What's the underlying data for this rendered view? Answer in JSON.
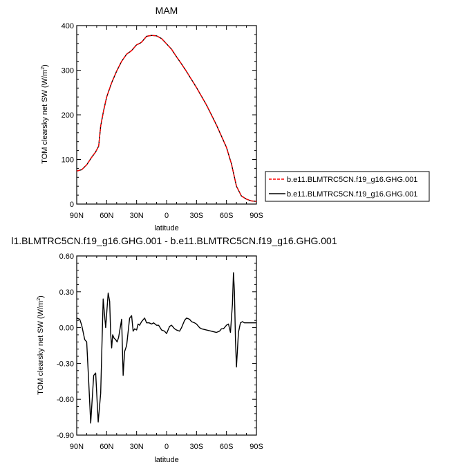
{
  "chart_data": [
    {
      "type": "line",
      "title": "MAM",
      "xlabel": "latitude",
      "ylabel": "TOM clearsky net SW (W/m²)",
      "ylabel_main": "TOM clearsky net SW (W/m",
      "ylabel_sup": "2",
      "ylabel_end": ")",
      "xlim": [
        90,
        -90
      ],
      "ylim": [
        0,
        400
      ],
      "x_ticks": [
        90,
        60,
        30,
        0,
        -30,
        -60,
        -90
      ],
      "x_tick_labels": [
        "90N",
        "60N",
        "30N",
        "0",
        "30S",
        "60S",
        "90S"
      ],
      "y_ticks": [
        0,
        100,
        200,
        300,
        400
      ],
      "y_tick_labels": [
        "0",
        "100",
        "200",
        "300",
        "400"
      ],
      "legend": {
        "placement": "right",
        "entries": [
          {
            "label": "b.e11.BLMTRC5CN.f19_g16.GHG.001",
            "color": "#ff0000",
            "dash": "dashed"
          },
          {
            "label": "b.e11.BLMTRC5CN.f19_g16.GHG.001",
            "color": "#000000",
            "dash": "solid"
          }
        ]
      },
      "series": [
        {
          "name": "b.e11.BLMTRC5CN.f19_g16.GHG.001",
          "color": "#ff0000",
          "dash": "dashed",
          "x": [
            90,
            85,
            80,
            75,
            71,
            68,
            66,
            63,
            60,
            55,
            50,
            45,
            40,
            35,
            30,
            27,
            25,
            20,
            15,
            10,
            5,
            0,
            -5,
            -10,
            -15,
            -20,
            -30,
            -40,
            -50,
            -60,
            -65,
            -70,
            -75,
            -80,
            -85,
            -90
          ],
          "y": [
            74,
            77,
            88,
            105,
            117,
            130,
            175,
            210,
            240,
            272,
            298,
            320,
            336,
            344,
            357,
            360,
            363,
            376,
            378,
            377,
            371,
            359,
            347,
            330,
            314,
            297,
            261,
            222,
            177,
            127,
            90,
            40,
            18,
            11,
            7,
            6
          ]
        },
        {
          "name": "b.e11.BLMTRC5CN.f19_g16.GHG.001",
          "color": "#000000",
          "dash": "solid",
          "x": [
            90,
            85,
            80,
            75,
            71,
            68,
            66,
            63,
            60,
            55,
            50,
            45,
            40,
            35,
            30,
            27,
            25,
            20,
            15,
            10,
            5,
            0,
            -5,
            -10,
            -15,
            -20,
            -30,
            -40,
            -50,
            -60,
            -65,
            -70,
            -75,
            -80,
            -85,
            -90
          ],
          "y": [
            74,
            77,
            88,
            105,
            117,
            130,
            175,
            210,
            240,
            272,
            298,
            320,
            336,
            344,
            357,
            360,
            363,
            376,
            378,
            377,
            371,
            359,
            347,
            330,
            314,
            297,
            261,
            222,
            177,
            127,
            90,
            40,
            18,
            11,
            7,
            6
          ]
        }
      ]
    },
    {
      "type": "line",
      "title": "l1.BLMTRC5CN.f19_g16.GHG.001 - b.e11.BLMTRC5CN.f19_g16.GHG.001",
      "xlabel": "latitude",
      "ylabel": "TOM clearsky net SW (W/m²)",
      "ylabel_main": "TOM clearsky net SW (W/m",
      "ylabel_sup": "2",
      "ylabel_end": ")",
      "xlim": [
        90,
        -90
      ],
      "ylim": [
        -0.9,
        0.6
      ],
      "x_ticks": [
        90,
        60,
        30,
        0,
        -30,
        -60,
        -90
      ],
      "x_tick_labels": [
        "90N",
        "60N",
        "30N",
        "0",
        "30S",
        "60S",
        "90S"
      ],
      "y_ticks": [
        -0.9,
        -0.6,
        -0.3,
        0.0,
        0.3,
        0.6
      ],
      "y_tick_labels": [
        "-0.90",
        "-0.60",
        "-0.30",
        "0.00",
        "0.30",
        "0.60"
      ],
      "series": [
        {
          "color": "#000000",
          "dash": "solid",
          "x": [
            90,
            87,
            85,
            82,
            80,
            78,
            76,
            73,
            71,
            68.5,
            66,
            63.5,
            61,
            58.5,
            57,
            56,
            55,
            54,
            52.5,
            51,
            49.5,
            48,
            45,
            43.5,
            42,
            40,
            37,
            35,
            33.5,
            32,
            30,
            28.5,
            27,
            25,
            22,
            20,
            17.5,
            15,
            13,
            10,
            8,
            5,
            2,
            0,
            -3,
            -5,
            -8,
            -10,
            -13,
            -15,
            -18,
            -20,
            -23,
            -25,
            -28,
            -30,
            -33,
            -35,
            -40,
            -45,
            -50,
            -53,
            -55,
            -57,
            -60,
            -62,
            -64,
            -66,
            -67,
            -68,
            -69,
            -70,
            -72,
            -74,
            -76,
            -78,
            -80,
            -85,
            -90
          ],
          "y": [
            0.08,
            0.07,
            0.02,
            -0.1,
            -0.12,
            -0.45,
            -0.8,
            -0.4,
            -0.38,
            -0.79,
            -0.55,
            0.24,
            0.0,
            0.29,
            0.22,
            -0.05,
            -0.17,
            -0.06,
            -0.09,
            -0.1,
            -0.12,
            -0.08,
            0.07,
            -0.4,
            -0.2,
            -0.15,
            0.08,
            0.1,
            -0.03,
            -0.01,
            -0.02,
            0.03,
            0.02,
            0.05,
            0.08,
            0.04,
            0.04,
            0.03,
            0.04,
            0.02,
            0.02,
            -0.02,
            -0.03,
            -0.05,
            0.01,
            0.02,
            -0.01,
            -0.02,
            -0.03,
            0.0,
            0.06,
            0.08,
            0.07,
            0.05,
            0.04,
            0.03,
            0.0,
            -0.01,
            -0.02,
            -0.03,
            -0.04,
            -0.03,
            -0.01,
            -0.01,
            0.02,
            0.03,
            -0.04,
            0.2,
            0.46,
            0.3,
            -0.1,
            -0.33,
            -0.04,
            0.04,
            0.05,
            0.04,
            0.04,
            0.04,
            0.04
          ]
        }
      ]
    }
  ]
}
